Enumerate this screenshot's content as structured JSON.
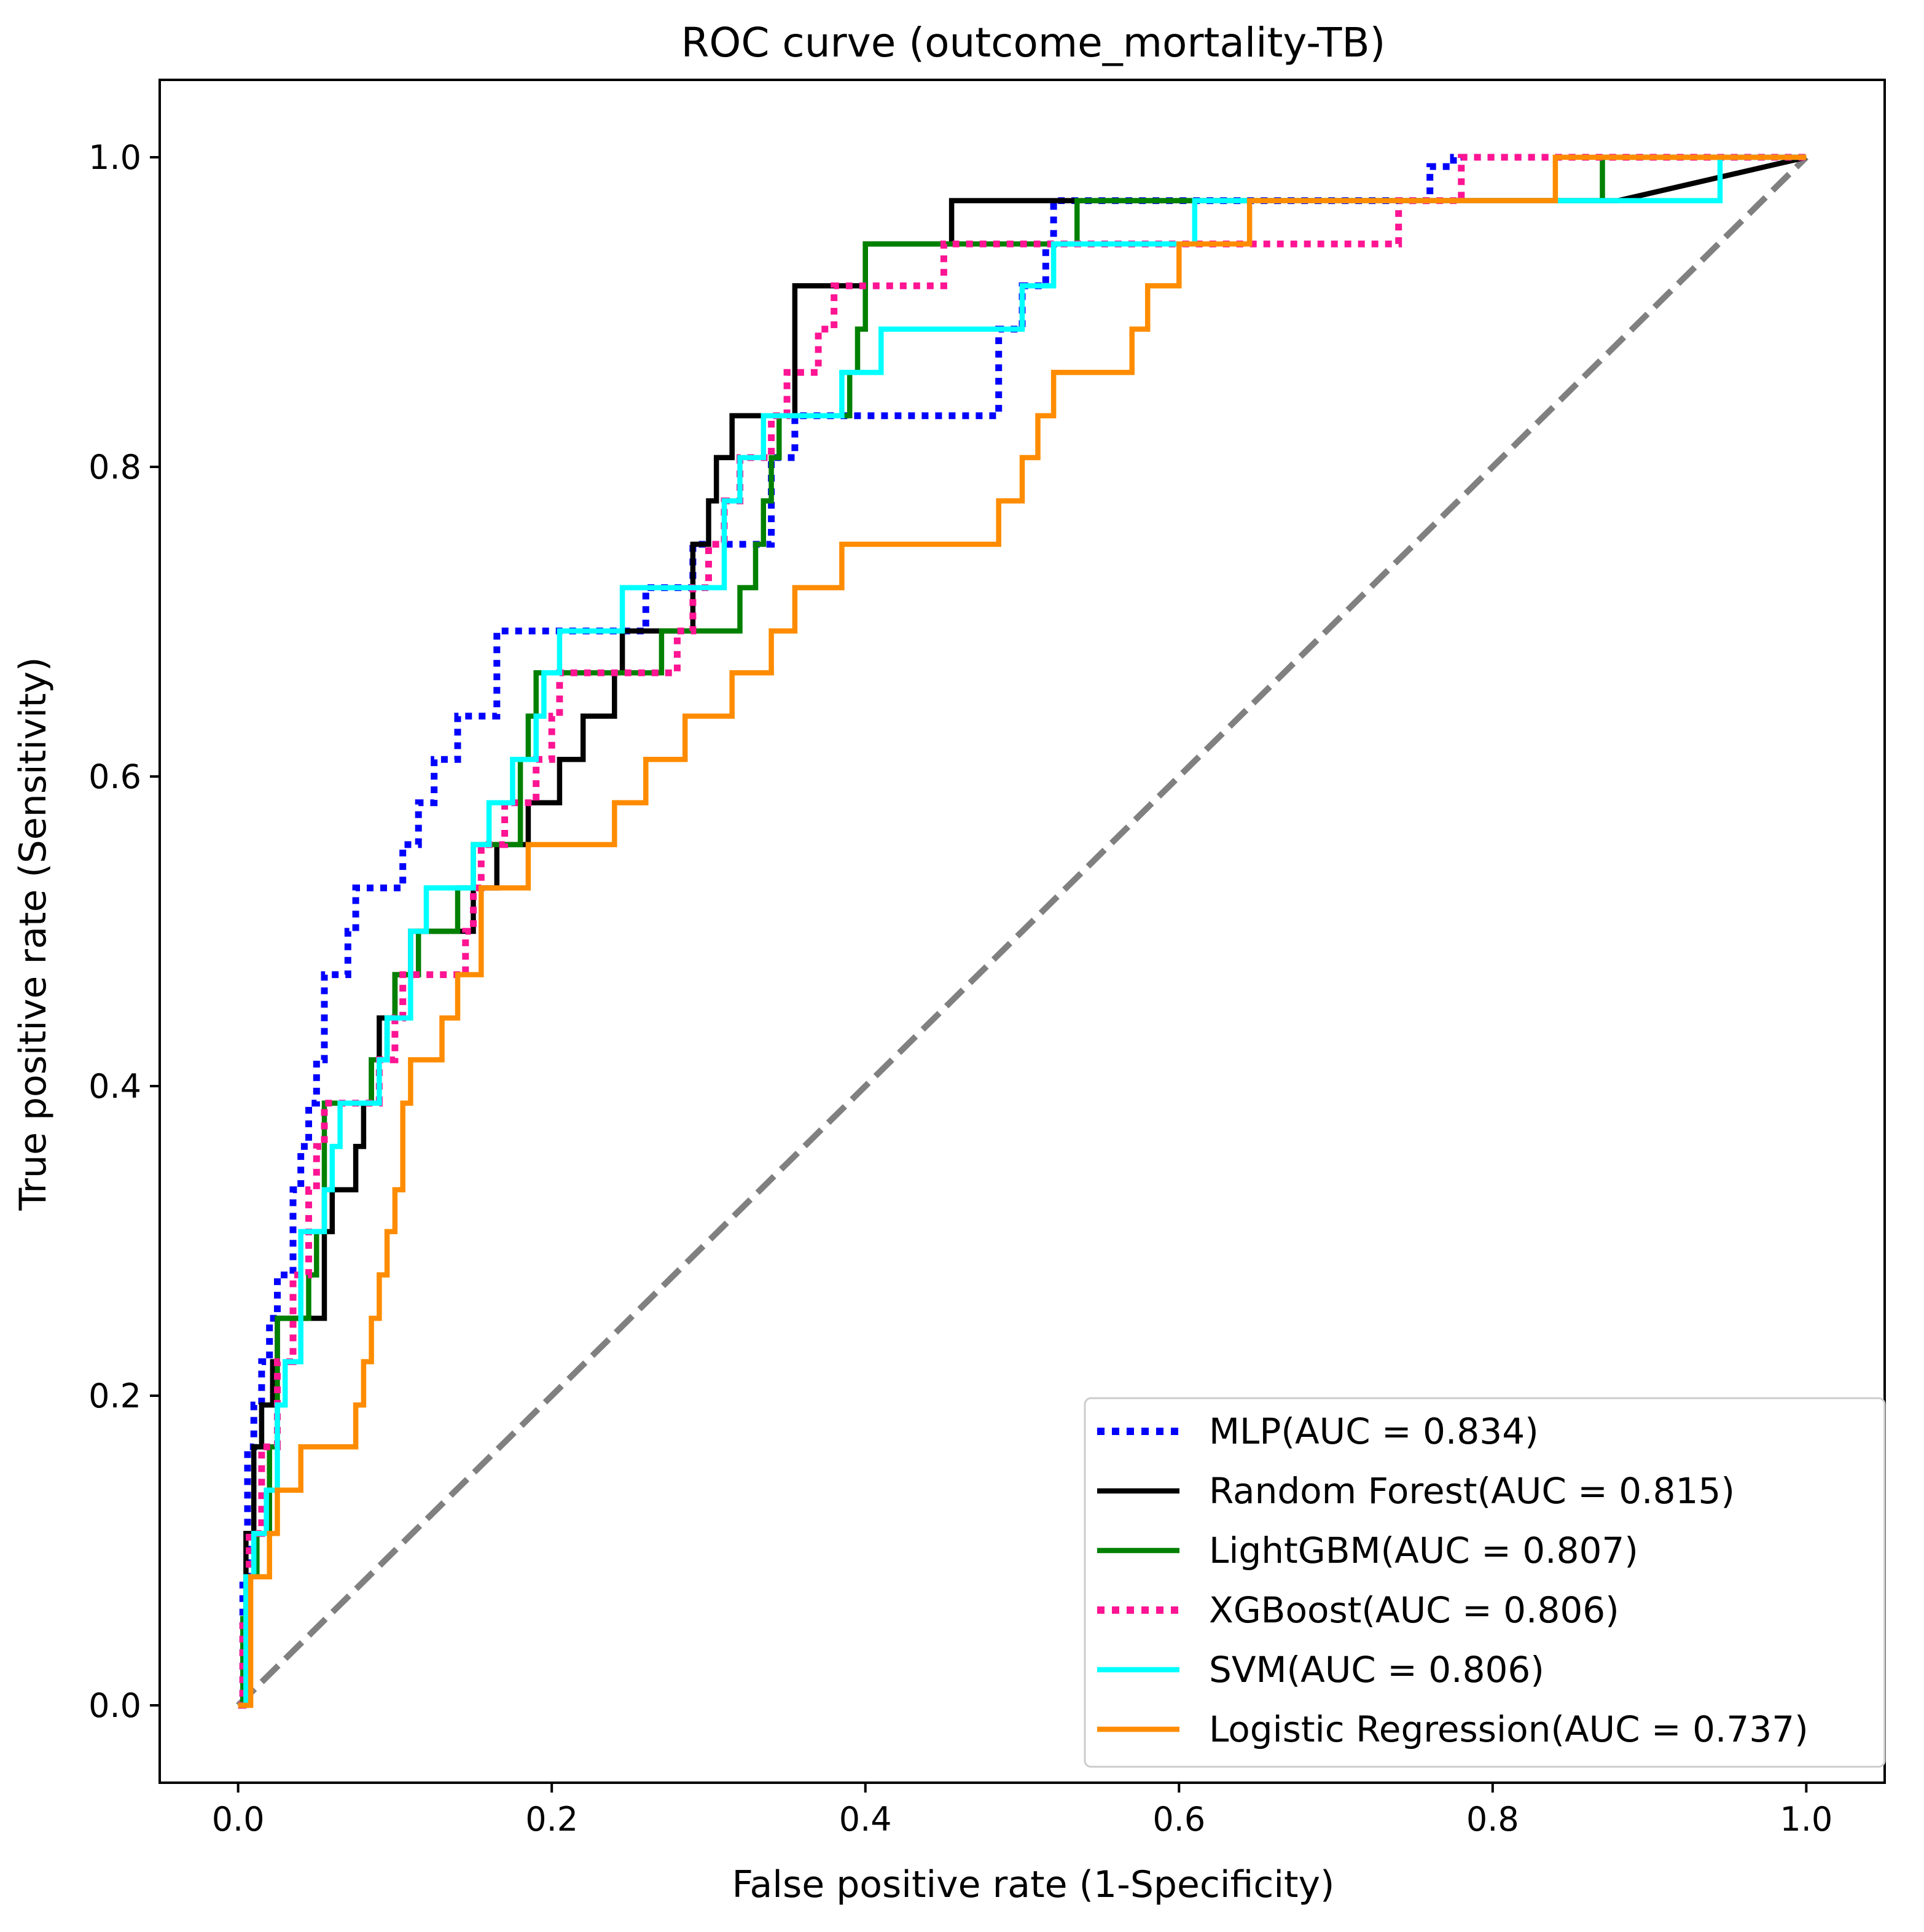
{
  "chart_data": {
    "type": "line",
    "title": "ROC curve (outcome_mortality-TB)",
    "xlabel": "False positive rate (1-Specificity)",
    "ylabel": "True positive rate (Sensitivity)",
    "xlim": [
      -0.05,
      1.05
    ],
    "ylim": [
      -0.05,
      1.05
    ],
    "x_ticks": [
      0.0,
      0.2,
      0.4,
      0.6,
      0.8,
      1.0
    ],
    "y_ticks": [
      0.0,
      0.2,
      0.4,
      0.6,
      0.8,
      1.0
    ],
    "x_tick_labels": [
      "0.0",
      "0.2",
      "0.4",
      "0.6",
      "0.8",
      "1.0"
    ],
    "y_tick_labels": [
      "0.0",
      "0.2",
      "0.4",
      "0.6",
      "0.8",
      "1.0"
    ],
    "grid": false,
    "legend_position": "lower-right",
    "diagonal": {
      "x": [
        0,
        1
      ],
      "y": [
        0,
        1
      ],
      "color": "#808080",
      "style": "dashed"
    },
    "series": [
      {
        "name": "MLP(AUC = 0.834)",
        "color": "#0000ff",
        "style": "dotted",
        "x": [
          0.0,
          0.003,
          0.003,
          0.006,
          0.006,
          0.01,
          0.01,
          0.015,
          0.015,
          0.02,
          0.02,
          0.025,
          0.025,
          0.035,
          0.035,
          0.04,
          0.04,
          0.045,
          0.045,
          0.05,
          0.05,
          0.055,
          0.055,
          0.07,
          0.07,
          0.075,
          0.075,
          0.105,
          0.105,
          0.115,
          0.115,
          0.125,
          0.125,
          0.14,
          0.14,
          0.165,
          0.165,
          0.175,
          0.175,
          0.26,
          0.26,
          0.29,
          0.29,
          0.34,
          0.34,
          0.355,
          0.355,
          0.38,
          0.38,
          0.485,
          0.485,
          0.5,
          0.5,
          0.515,
          0.515,
          0.52,
          0.52,
          0.76,
          0.76,
          0.775,
          0.775,
          1.0
        ],
        "y": [
          0.0,
          0.0,
          0.083,
          0.083,
          0.167,
          0.167,
          0.194,
          0.194,
          0.222,
          0.222,
          0.25,
          0.25,
          0.278,
          0.278,
          0.333,
          0.333,
          0.361,
          0.361,
          0.389,
          0.389,
          0.417,
          0.417,
          0.472,
          0.472,
          0.5,
          0.5,
          0.528,
          0.528,
          0.556,
          0.556,
          0.583,
          0.583,
          0.611,
          0.611,
          0.639,
          0.639,
          0.694,
          0.694,
          0.694,
          0.694,
          0.722,
          0.722,
          0.75,
          0.75,
          0.806,
          0.806,
          0.833,
          0.833,
          0.833,
          0.833,
          0.889,
          0.889,
          0.917,
          0.917,
          0.944,
          0.944,
          0.972,
          0.972,
          0.994,
          0.994,
          1.0,
          1.0
        ]
      },
      {
        "name": "Random Forest(AUC = 0.815)",
        "color": "#000000",
        "style": "solid",
        "x": [
          0.0,
          0.005,
          0.005,
          0.01,
          0.01,
          0.015,
          0.015,
          0.022,
          0.022,
          0.025,
          0.025,
          0.045,
          0.045,
          0.055,
          0.055,
          0.06,
          0.06,
          0.075,
          0.075,
          0.08,
          0.08,
          0.085,
          0.085,
          0.09,
          0.09,
          0.1,
          0.1,
          0.105,
          0.105,
          0.11,
          0.11,
          0.145,
          0.145,
          0.15,
          0.15,
          0.165,
          0.165,
          0.175,
          0.175,
          0.185,
          0.185,
          0.205,
          0.205,
          0.22,
          0.22,
          0.24,
          0.24,
          0.245,
          0.245,
          0.25,
          0.25,
          0.29,
          0.29,
          0.3,
          0.3,
          0.305,
          0.305,
          0.31,
          0.31,
          0.315,
          0.315,
          0.355,
          0.355,
          0.4,
          0.4,
          0.455,
          0.455,
          0.88,
          1.0
        ],
        "y": [
          0.0,
          0.0,
          0.111,
          0.111,
          0.167,
          0.167,
          0.194,
          0.194,
          0.222,
          0.222,
          0.25,
          0.25,
          0.25,
          0.25,
          0.306,
          0.306,
          0.333,
          0.333,
          0.361,
          0.361,
          0.389,
          0.389,
          0.417,
          0.417,
          0.444,
          0.444,
          0.472,
          0.472,
          0.472,
          0.472,
          0.5,
          0.5,
          0.5,
          0.5,
          0.528,
          0.528,
          0.556,
          0.556,
          0.556,
          0.556,
          0.583,
          0.583,
          0.611,
          0.611,
          0.639,
          0.639,
          0.667,
          0.667,
          0.694,
          0.694,
          0.694,
          0.694,
          0.75,
          0.75,
          0.778,
          0.778,
          0.806,
          0.806,
          0.806,
          0.806,
          0.833,
          0.833,
          0.917,
          0.917,
          0.944,
          0.944,
          0.972,
          0.972,
          1.0
        ]
      },
      {
        "name": "LightGBM(AUC = 0.807)",
        "color": "#008000",
        "style": "solid",
        "x": [
          0.0,
          0.003,
          0.003,
          0.005,
          0.005,
          0.012,
          0.012,
          0.02,
          0.02,
          0.025,
          0.025,
          0.035,
          0.035,
          0.045,
          0.045,
          0.05,
          0.05,
          0.055,
          0.055,
          0.075,
          0.075,
          0.085,
          0.085,
          0.095,
          0.095,
          0.1,
          0.1,
          0.11,
          0.11,
          0.115,
          0.115,
          0.14,
          0.14,
          0.145,
          0.145,
          0.15,
          0.15,
          0.175,
          0.175,
          0.18,
          0.18,
          0.185,
          0.185,
          0.19,
          0.19,
          0.27,
          0.27,
          0.29,
          0.29,
          0.32,
          0.32,
          0.33,
          0.33,
          0.335,
          0.335,
          0.34,
          0.34,
          0.345,
          0.345,
          0.39,
          0.39,
          0.395,
          0.395,
          0.4,
          0.4,
          0.535,
          0.535,
          0.87,
          0.87,
          1.0
        ],
        "y": [
          0.0,
          0.0,
          0.056,
          0.056,
          0.083,
          0.083,
          0.111,
          0.111,
          0.167,
          0.167,
          0.25,
          0.25,
          0.25,
          0.25,
          0.278,
          0.278,
          0.306,
          0.306,
          0.389,
          0.389,
          0.389,
          0.389,
          0.417,
          0.417,
          0.444,
          0.444,
          0.472,
          0.472,
          0.472,
          0.472,
          0.5,
          0.5,
          0.528,
          0.528,
          0.528,
          0.528,
          0.556,
          0.556,
          0.556,
          0.556,
          0.611,
          0.611,
          0.639,
          0.639,
          0.667,
          0.667,
          0.694,
          0.694,
          0.694,
          0.694,
          0.722,
          0.722,
          0.75,
          0.75,
          0.778,
          0.778,
          0.806,
          0.806,
          0.833,
          0.833,
          0.861,
          0.861,
          0.889,
          0.889,
          0.944,
          0.944,
          0.972,
          0.972,
          1.0,
          1.0
        ]
      },
      {
        "name": "XGBoost(AUC = 0.806)",
        "color": "#ff1493",
        "style": "dotted",
        "x": [
          0.0,
          0.003,
          0.003,
          0.007,
          0.007,
          0.015,
          0.015,
          0.025,
          0.025,
          0.035,
          0.035,
          0.045,
          0.045,
          0.05,
          0.05,
          0.055,
          0.055,
          0.075,
          0.075,
          0.09,
          0.09,
          0.1,
          0.1,
          0.105,
          0.105,
          0.12,
          0.12,
          0.145,
          0.145,
          0.15,
          0.15,
          0.155,
          0.155,
          0.165,
          0.165,
          0.17,
          0.17,
          0.18,
          0.18,
          0.19,
          0.19,
          0.2,
          0.2,
          0.205,
          0.205,
          0.21,
          0.21,
          0.28,
          0.28,
          0.29,
          0.29,
          0.3,
          0.3,
          0.31,
          0.31,
          0.32,
          0.32,
          0.34,
          0.34,
          0.35,
          0.35,
          0.36,
          0.36,
          0.37,
          0.37,
          0.38,
          0.38,
          0.45,
          0.45,
          0.46,
          0.46,
          0.47,
          0.47,
          0.74,
          0.74,
          0.78,
          0.78,
          1.0
        ],
        "y": [
          0.0,
          0.0,
          0.056,
          0.056,
          0.111,
          0.111,
          0.167,
          0.167,
          0.222,
          0.222,
          0.278,
          0.278,
          0.333,
          0.333,
          0.361,
          0.361,
          0.389,
          0.389,
          0.389,
          0.389,
          0.417,
          0.417,
          0.444,
          0.444,
          0.472,
          0.472,
          0.472,
          0.472,
          0.5,
          0.5,
          0.528,
          0.528,
          0.556,
          0.556,
          0.556,
          0.556,
          0.583,
          0.583,
          0.583,
          0.583,
          0.611,
          0.611,
          0.639,
          0.639,
          0.667,
          0.667,
          0.667,
          0.667,
          0.694,
          0.694,
          0.722,
          0.722,
          0.75,
          0.75,
          0.778,
          0.778,
          0.806,
          0.806,
          0.833,
          0.833,
          0.861,
          0.861,
          0.861,
          0.861,
          0.889,
          0.889,
          0.917,
          0.917,
          0.944,
          0.944,
          0.944,
          0.944,
          0.944,
          0.944,
          0.972,
          0.972,
          1.0,
          1.0
        ]
      },
      {
        "name": "SVM(AUC = 0.806)",
        "color": "#00ffff",
        "style": "solid",
        "x": [
          0.0,
          0.005,
          0.005,
          0.01,
          0.01,
          0.018,
          0.018,
          0.025,
          0.025,
          0.03,
          0.03,
          0.04,
          0.04,
          0.045,
          0.045,
          0.055,
          0.055,
          0.06,
          0.06,
          0.065,
          0.065,
          0.09,
          0.09,
          0.095,
          0.095,
          0.11,
          0.11,
          0.12,
          0.12,
          0.14,
          0.14,
          0.15,
          0.15,
          0.16,
          0.16,
          0.175,
          0.175,
          0.185,
          0.185,
          0.19,
          0.19,
          0.195,
          0.195,
          0.205,
          0.205,
          0.245,
          0.245,
          0.31,
          0.31,
          0.32,
          0.32,
          0.335,
          0.335,
          0.36,
          0.36,
          0.385,
          0.385,
          0.41,
          0.41,
          0.5,
          0.5,
          0.52,
          0.52,
          0.6,
          0.6,
          0.61,
          0.61,
          0.83,
          0.83,
          0.945,
          0.945,
          1.0
        ],
        "y": [
          0.0,
          0.0,
          0.083,
          0.083,
          0.111,
          0.111,
          0.139,
          0.139,
          0.194,
          0.194,
          0.222,
          0.222,
          0.306,
          0.306,
          0.306,
          0.306,
          0.333,
          0.333,
          0.361,
          0.361,
          0.389,
          0.389,
          0.417,
          0.417,
          0.444,
          0.444,
          0.5,
          0.5,
          0.528,
          0.528,
          0.528,
          0.528,
          0.556,
          0.556,
          0.583,
          0.583,
          0.611,
          0.611,
          0.611,
          0.611,
          0.639,
          0.639,
          0.667,
          0.667,
          0.694,
          0.694,
          0.722,
          0.722,
          0.778,
          0.778,
          0.806,
          0.806,
          0.833,
          0.833,
          0.833,
          0.833,
          0.861,
          0.861,
          0.889,
          0.889,
          0.917,
          0.917,
          0.944,
          0.944,
          0.944,
          0.944,
          0.972,
          0.972,
          0.972,
          0.972,
          1.0,
          1.0
        ]
      },
      {
        "name": "Logistic Regression(AUC = 0.737)",
        "color": "#ff8c00",
        "style": "solid",
        "x": [
          0.0,
          0.008,
          0.008,
          0.02,
          0.02,
          0.025,
          0.025,
          0.04,
          0.04,
          0.075,
          0.075,
          0.08,
          0.08,
          0.085,
          0.085,
          0.09,
          0.09,
          0.095,
          0.095,
          0.1,
          0.1,
          0.105,
          0.105,
          0.11,
          0.11,
          0.13,
          0.13,
          0.14,
          0.14,
          0.155,
          0.155,
          0.185,
          0.185,
          0.24,
          0.24,
          0.26,
          0.26,
          0.285,
          0.285,
          0.315,
          0.315,
          0.34,
          0.34,
          0.355,
          0.355,
          0.385,
          0.385,
          0.485,
          0.485,
          0.5,
          0.5,
          0.51,
          0.51,
          0.52,
          0.52,
          0.57,
          0.57,
          0.58,
          0.58,
          0.6,
          0.6,
          0.62,
          0.62,
          0.645,
          0.645,
          0.66,
          0.66,
          0.84,
          0.84,
          1.0
        ],
        "y": [
          0.0,
          0.0,
          0.083,
          0.083,
          0.111,
          0.111,
          0.139,
          0.139,
          0.167,
          0.167,
          0.194,
          0.194,
          0.222,
          0.222,
          0.25,
          0.25,
          0.278,
          0.278,
          0.306,
          0.306,
          0.333,
          0.333,
          0.389,
          0.389,
          0.417,
          0.417,
          0.444,
          0.444,
          0.472,
          0.472,
          0.528,
          0.528,
          0.556,
          0.556,
          0.583,
          0.583,
          0.611,
          0.611,
          0.639,
          0.639,
          0.667,
          0.667,
          0.694,
          0.694,
          0.722,
          0.722,
          0.75,
          0.75,
          0.778,
          0.778,
          0.806,
          0.806,
          0.833,
          0.833,
          0.861,
          0.861,
          0.889,
          0.889,
          0.917,
          0.917,
          0.944,
          0.944,
          0.944,
          0.944,
          0.972,
          0.972,
          0.972,
          0.972,
          1.0,
          1.0
        ]
      }
    ]
  }
}
